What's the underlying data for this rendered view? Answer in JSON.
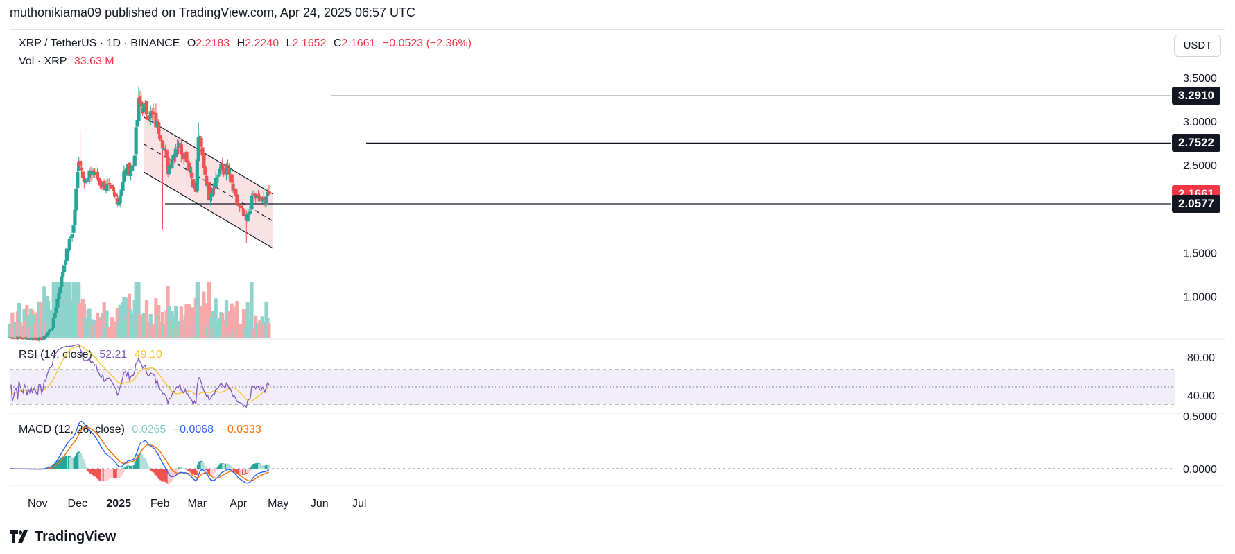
{
  "publisher_line": "muthonikiama09 published on TradingView.com, Apr 24, 2025 06:57 UTC",
  "symbol": {
    "title": "XRP / TetherUS · 1D · BINANCE",
    "o_label": "O",
    "o": "2.2183",
    "h_label": "H",
    "h": "2.2240",
    "l_label": "L",
    "l": "2.1652",
    "c_label": "C",
    "c": "2.1661",
    "change": "−0.0523 (−2.36%)"
  },
  "volume_legend": {
    "label": "Vol · XRP",
    "value": "33.63 M"
  },
  "rsi_legend": {
    "label": "RSI (14, close)",
    "value": "52.21",
    "ma_value": "49.10"
  },
  "macd_legend": {
    "label": "MACD (12, 26, close)",
    "hist": "0.0265",
    "macd": "−0.0068",
    "signal": "−0.0333"
  },
  "currency_button": "USDT",
  "price_tags": [
    {
      "label": "3.2910",
      "value": 3.291,
      "style": "black"
    },
    {
      "label": "2.7522",
      "value": 2.7522,
      "style": "black"
    },
    {
      "label": "2.1661",
      "value": 2.1661,
      "style": "red"
    },
    {
      "label": "2.0577",
      "value": 2.0577,
      "style": "black"
    }
  ],
  "brand": "TradingView",
  "colors": {
    "up": "#26a69a",
    "down": "#ef5350",
    "channel_fill": "#f8d7da",
    "rsi": "#7e57c2",
    "rsi_ma": "#fbc02d",
    "macd": "#2962ff",
    "signal": "#ff6d00"
  },
  "chart_data": {
    "type": "candlestick",
    "price_axis": {
      "ticks": [
        "3.5000",
        "3.0000",
        "2.5000",
        "1.5000",
        "1.0000"
      ],
      "range": [
        0.5,
        3.6
      ]
    },
    "x_ticks": [
      "Nov",
      "Dec",
      "2025",
      "Feb",
      "Mar",
      "Apr",
      "May",
      "Jun",
      "Jul"
    ],
    "horizontal_levels": [
      3.291,
      2.7522,
      2.0577
    ],
    "channel": {
      "upper": [
        [
          "2025-01-20",
          3.05
        ],
        [
          "2025-04-27",
          2.17
        ]
      ],
      "lower": [
        [
          "2025-01-20",
          2.42
        ],
        [
          "2025-04-27",
          1.55
        ]
      ],
      "middle": [
        [
          "2025-01-20",
          2.74
        ],
        [
          "2025-04-27",
          1.86
        ]
      ]
    },
    "anchors": [
      [
        "2024-10-11",
        0.53
      ],
      [
        "2024-10-25",
        0.52
      ],
      [
        "2024-11-05",
        0.51
      ],
      [
        "2024-11-12",
        0.65
      ],
      [
        "2024-11-17",
        1.05
      ],
      [
        "2024-11-22",
        1.45
      ],
      [
        "2024-11-28",
        1.8
      ],
      [
        "2024-12-02",
        2.6
      ],
      [
        "2024-12-04",
        2.45
      ],
      [
        "2024-12-08",
        2.3
      ],
      [
        "2024-12-12",
        2.45
      ],
      [
        "2024-12-18",
        2.3
      ],
      [
        "2024-12-25",
        2.22
      ],
      [
        "2025-01-01",
        2.1
      ],
      [
        "2025-01-05",
        2.4
      ],
      [
        "2025-01-12",
        2.5
      ],
      [
        "2025-01-16",
        3.2
      ],
      [
        "2025-01-20",
        3.15
      ],
      [
        "2025-01-27",
        3.05
      ],
      [
        "2025-02-02",
        2.85
      ],
      [
        "2025-02-07",
        2.45
      ],
      [
        "2025-02-14",
        2.75
      ],
      [
        "2025-02-21",
        2.6
      ],
      [
        "2025-02-28",
        2.2
      ],
      [
        "2025-03-02",
        2.85
      ],
      [
        "2025-03-06",
        2.5
      ],
      [
        "2025-03-10",
        2.15
      ],
      [
        "2025-03-18",
        2.45
      ],
      [
        "2025-03-24",
        2.45
      ],
      [
        "2025-03-30",
        2.1
      ],
      [
        "2025-04-07",
        1.85
      ],
      [
        "2025-04-12",
        2.15
      ],
      [
        "2025-04-20",
        2.08
      ],
      [
        "2025-04-23",
        2.2
      ],
      [
        "2025-04-24",
        2.1661
      ]
    ],
    "rsi_axis": {
      "ticks": [
        "80.00",
        "40.00"
      ],
      "bands": [
        70,
        50,
        30
      ]
    },
    "macd_axis": {
      "ticks": [
        "0.5000",
        "0.0000"
      ]
    }
  }
}
